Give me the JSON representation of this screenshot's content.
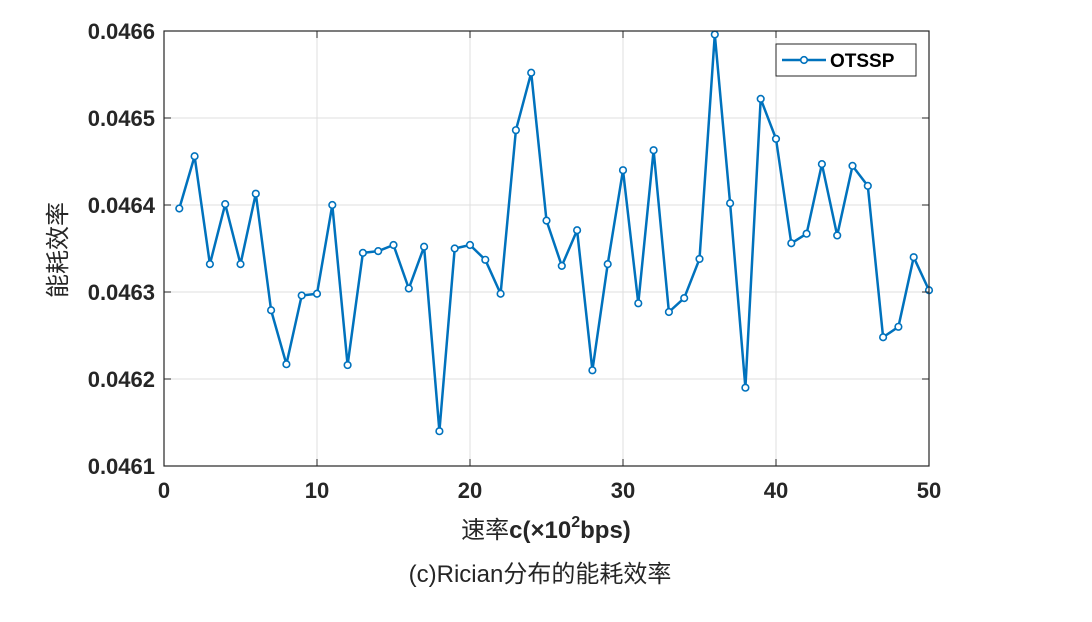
{
  "chart_data": {
    "type": "line",
    "ylabel": "能耗效率",
    "xlabel_prefix": "速率",
    "xlabel_main": "c(×10",
    "xlabel_sup": "2",
    "xlabel_suffix": "bps)",
    "caption": "(c)Rician分布的能耗效率",
    "xlim": [
      0,
      50
    ],
    "ylim": [
      0.0461,
      0.0466
    ],
    "xticks": [
      0,
      10,
      20,
      30,
      40,
      50
    ],
    "xtick_labels": [
      "0",
      "10",
      "20",
      "30",
      "40",
      "50"
    ],
    "yticks": [
      0.0461,
      0.0462,
      0.0463,
      0.0464,
      0.0465,
      0.0466
    ],
    "ytick_labels": [
      "0.0461",
      "0.0462",
      "0.0463",
      "0.0464",
      "0.0465",
      "0.0466"
    ],
    "grid": true,
    "legend_position": "top-right",
    "series": [
      {
        "name": "OTSSP",
        "color": "#0072BD",
        "marker": "circle",
        "x": [
          1,
          2,
          3,
          4,
          5,
          6,
          7,
          8,
          9,
          10,
          11,
          12,
          13,
          14,
          15,
          16,
          17,
          18,
          19,
          20,
          21,
          22,
          23,
          24,
          25,
          26,
          27,
          28,
          29,
          30,
          31,
          32,
          33,
          34,
          35,
          36,
          37,
          38,
          39,
          40,
          41,
          42,
          43,
          44,
          45,
          46,
          47,
          48,
          49,
          50
        ],
        "y": [
          0.046396,
          0.046456,
          0.046332,
          0.046401,
          0.046332,
          0.046413,
          0.046279,
          0.046217,
          0.046296,
          0.046298,
          0.0464,
          0.046216,
          0.046345,
          0.046347,
          0.046354,
          0.046304,
          0.046352,
          0.04614,
          0.04635,
          0.046354,
          0.046337,
          0.046298,
          0.046486,
          0.046552,
          0.046382,
          0.04633,
          0.046371,
          0.04621,
          0.046332,
          0.04644,
          0.046287,
          0.046463,
          0.046277,
          0.046293,
          0.046338,
          0.046596,
          0.046402,
          0.04619,
          0.046522,
          0.046476,
          0.046356,
          0.046367,
          0.046447,
          0.046365,
          0.046445,
          0.046422,
          0.046248,
          0.04626,
          0.04634,
          0.046302
        ]
      }
    ]
  }
}
